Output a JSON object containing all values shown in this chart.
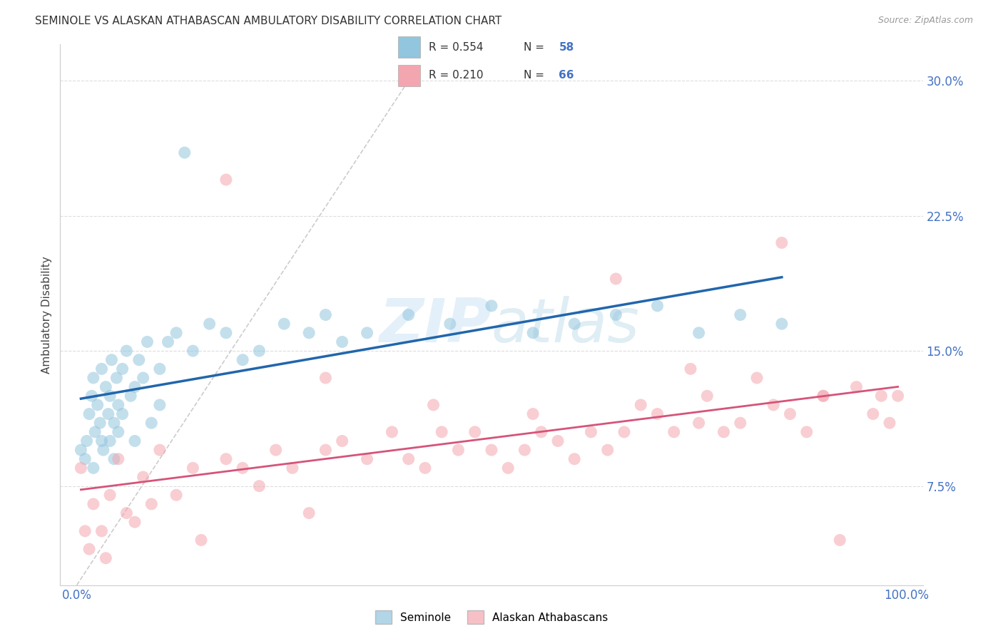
{
  "title": "SEMINOLE VS ALASKAN ATHABASCAN AMBULATORY DISABILITY CORRELATION CHART",
  "source": "Source: ZipAtlas.com",
  "ylabel": "Ambulatory Disability",
  "xlim": [
    0.0,
    100.0
  ],
  "ylim": [
    2.0,
    32.0
  ],
  "yticks": [
    7.5,
    15.0,
    22.5,
    30.0
  ],
  "ytick_labels": [
    "7.5%",
    "15.0%",
    "22.5%",
    "30.0%"
  ],
  "xtick_labels": [
    "0.0%",
    "100.0%"
  ],
  "seminole_R": 0.554,
  "seminole_N": 58,
  "athabascan_R": 0.21,
  "athabascan_N": 66,
  "seminole_color": "#92c5de",
  "athabascan_color": "#f4a6b0",
  "seminole_line_color": "#2166ac",
  "athabascan_line_color": "#d6537a",
  "legend_label_seminole": "Seminole",
  "legend_label_athabascan": "Alaskan Athabascans",
  "seminole_x": [
    0.5,
    1.0,
    1.2,
    1.5,
    1.8,
    2.0,
    2.0,
    2.2,
    2.5,
    2.8,
    3.0,
    3.0,
    3.2,
    3.5,
    3.8,
    4.0,
    4.0,
    4.2,
    4.5,
    4.5,
    4.8,
    5.0,
    5.0,
    5.5,
    5.5,
    6.0,
    6.5,
    7.0,
    7.0,
    7.5,
    8.0,
    8.5,
    9.0,
    10.0,
    10.0,
    11.0,
    12.0,
    13.0,
    14.0,
    16.0,
    18.0,
    20.0,
    22.0,
    25.0,
    28.0,
    30.0,
    32.0,
    35.0,
    40.0,
    45.0,
    50.0,
    55.0,
    60.0,
    65.0,
    70.0,
    75.0,
    80.0,
    85.0
  ],
  "seminole_y": [
    9.5,
    9.0,
    10.0,
    11.5,
    12.5,
    13.5,
    8.5,
    10.5,
    12.0,
    11.0,
    14.0,
    10.0,
    9.5,
    13.0,
    11.5,
    12.5,
    10.0,
    14.5,
    11.0,
    9.0,
    13.5,
    12.0,
    10.5,
    11.5,
    14.0,
    15.0,
    12.5,
    13.0,
    10.0,
    14.5,
    13.5,
    15.5,
    11.0,
    12.0,
    14.0,
    15.5,
    16.0,
    26.0,
    15.0,
    16.5,
    16.0,
    14.5,
    15.0,
    16.5,
    16.0,
    17.0,
    15.5,
    16.0,
    17.0,
    16.5,
    17.5,
    16.0,
    16.5,
    17.0,
    17.5,
    16.0,
    17.0,
    16.5
  ],
  "athabascan_x": [
    0.5,
    1.0,
    1.5,
    2.0,
    3.0,
    3.5,
    4.0,
    5.0,
    6.0,
    7.0,
    8.0,
    9.0,
    10.0,
    12.0,
    14.0,
    15.0,
    18.0,
    20.0,
    22.0,
    24.0,
    26.0,
    28.0,
    30.0,
    32.0,
    35.0,
    38.0,
    40.0,
    42.0,
    44.0,
    46.0,
    48.0,
    50.0,
    52.0,
    54.0,
    56.0,
    58.0,
    60.0,
    62.0,
    64.0,
    66.0,
    68.0,
    70.0,
    72.0,
    74.0,
    76.0,
    78.0,
    80.0,
    82.0,
    84.0,
    86.0,
    88.0,
    90.0,
    92.0,
    94.0,
    96.0,
    97.0,
    98.0,
    99.0,
    18.0,
    85.0,
    65.0,
    55.0,
    43.0,
    30.0,
    75.0,
    90.0
  ],
  "athabascan_y": [
    8.5,
    5.0,
    4.0,
    6.5,
    5.0,
    3.5,
    7.0,
    9.0,
    6.0,
    5.5,
    8.0,
    6.5,
    9.5,
    7.0,
    8.5,
    4.5,
    9.0,
    8.5,
    7.5,
    9.5,
    8.5,
    6.0,
    9.5,
    10.0,
    9.0,
    10.5,
    9.0,
    8.5,
    10.5,
    9.5,
    10.5,
    9.5,
    8.5,
    9.5,
    10.5,
    10.0,
    9.0,
    10.5,
    9.5,
    10.5,
    12.0,
    11.5,
    10.5,
    14.0,
    12.5,
    10.5,
    11.0,
    13.5,
    12.0,
    11.5,
    10.5,
    12.5,
    4.5,
    13.0,
    11.5,
    12.5,
    11.0,
    12.5,
    24.5,
    21.0,
    19.0,
    11.5,
    12.0,
    13.5,
    11.0,
    12.5
  ]
}
